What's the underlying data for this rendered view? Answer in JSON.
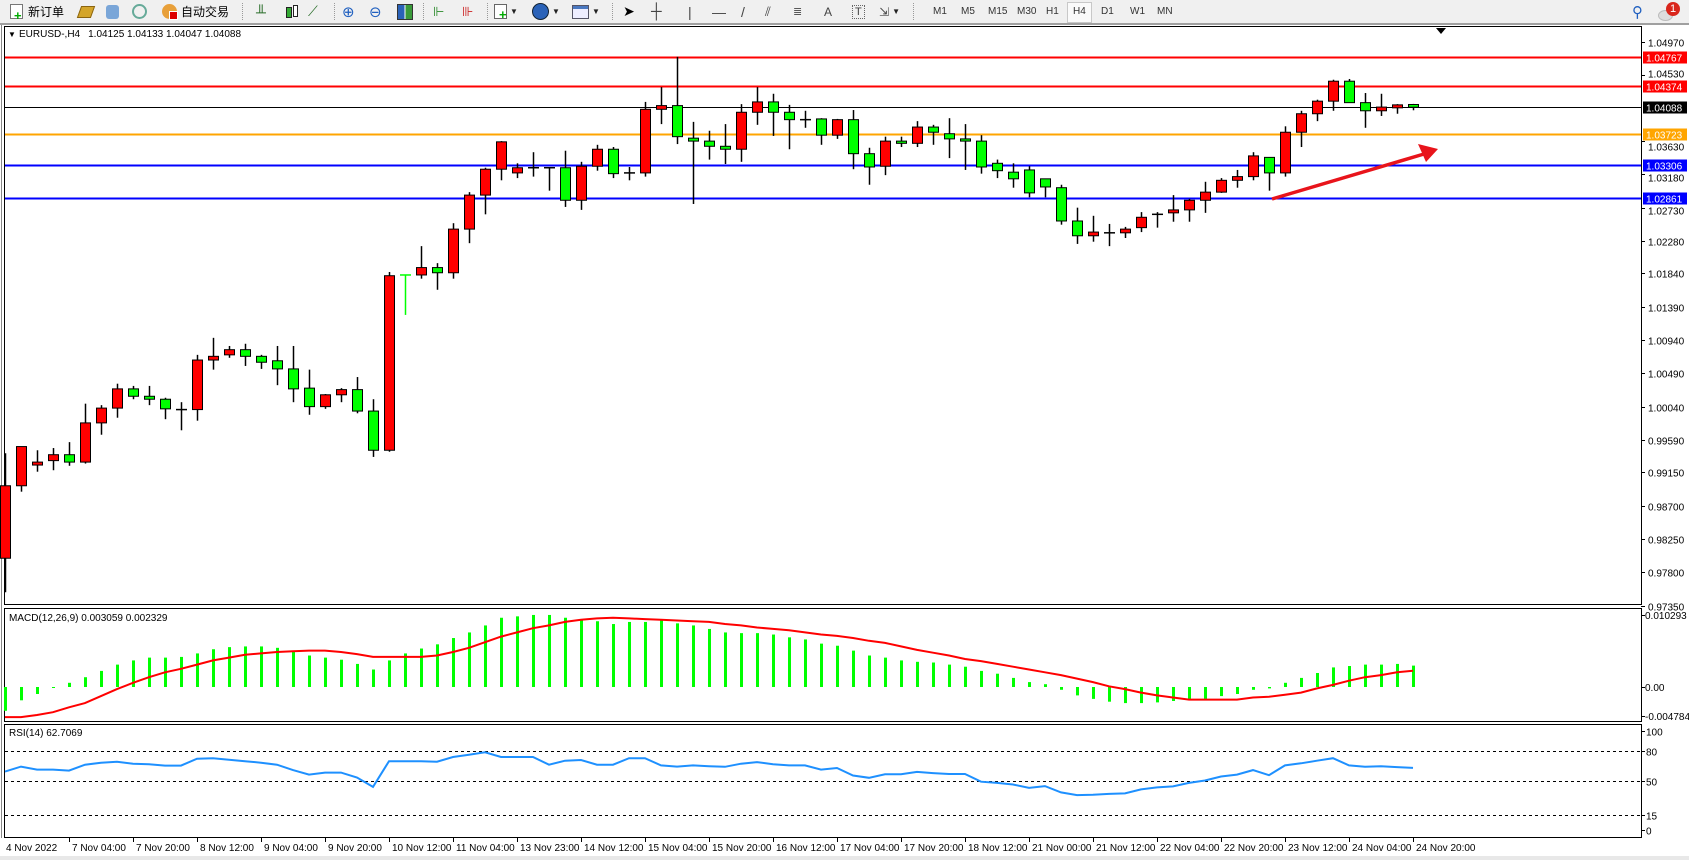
{
  "toolbar": {
    "new_order_label": "新订单",
    "auto_trading_label": "自动交易",
    "timeframes": [
      "M1",
      "M5",
      "M15",
      "M30",
      "H1",
      "H4",
      "D1",
      "W1",
      "MN"
    ],
    "active_timeframe": "H4",
    "notification_count": "1",
    "icons": [
      "new-order-icon",
      "gold-icon",
      "people-icon",
      "signal-icon",
      "auto-trading-icon",
      "bar-chart-icon",
      "candlestick-icon",
      "line-chart-icon",
      "zoom-in-icon",
      "zoom-out-icon",
      "tile-windows-icon",
      "chart-shift-icon",
      "autoscroll-icon",
      "indicators-icon",
      "periods-icon",
      "templates-icon",
      "cursor-icon",
      "crosshair-icon",
      "vertical-line-icon",
      "horizontal-line-icon",
      "trendline-icon",
      "equidistant-channel-icon",
      "fibonacci-icon",
      "text-icon",
      "text-label-icon",
      "arrows-icon",
      "search-icon",
      "notification-icon"
    ]
  },
  "chart": {
    "symbol_header": "EURUSD-,H4",
    "ohlc_header": "1.04125 1.04133 1.04047 1.04088",
    "bull_color": "#ff0000",
    "bear_color": "#00ff00"
  },
  "chart_data": {
    "type": "candlestick",
    "price_axis": {
      "ticks": [
        "1.04970",
        "1.04530",
        "1.03630",
        "1.03180",
        "1.02730",
        "1.02280",
        "1.01840",
        "1.01390",
        "1.00940",
        "1.00490",
        "1.00040",
        "0.99590",
        "0.99150",
        "0.98700",
        "0.98250",
        "0.97800",
        "0.97350"
      ]
    },
    "levels": [
      {
        "price": "1.04767",
        "color": "#ff0000"
      },
      {
        "price": "1.04374",
        "color": "#ff0000"
      },
      {
        "price": "1.04088",
        "color": "#000000"
      },
      {
        "price": "1.03723",
        "color": "#ffa500"
      },
      {
        "price": "1.03306",
        "color": "#0000ff"
      },
      {
        "price": "1.02861",
        "color": "#0000ff"
      }
    ],
    "time_labels": [
      "4 Nov 2022",
      "7 Nov 04:00",
      "7 Nov 20:00",
      "8 Nov 12:00",
      "9 Nov 04:00",
      "9 Nov 20:00",
      "10 Nov 12:00",
      "11 Nov 04:00",
      "13 Nov 23:00",
      "14 Nov 12:00",
      "15 Nov 04:00",
      "15 Nov 20:00",
      "16 Nov 12:00",
      "17 Nov 04:00",
      "17 Nov 20:00",
      "18 Nov 12:00",
      "21 Nov 00:00",
      "21 Nov 12:00",
      "22 Nov 04:00",
      "22 Nov 20:00",
      "23 Nov 12:00",
      "24 Nov 04:00",
      "24 Nov 20:00"
    ],
    "time_label_every_bars": 4,
    "ohlc": [
      [
        0.9799,
        0.9941,
        0.9753,
        0.9897
      ],
      [
        0.9897,
        0.995,
        0.9889,
        0.995
      ],
      [
        0.9925,
        0.9945,
        0.9916,
        0.9929
      ],
      [
        0.9931,
        0.9948,
        0.9918,
        0.9939
      ],
      [
        0.9939,
        0.9956,
        0.9924,
        0.9929
      ],
      [
        0.9929,
        1.0008,
        0.9927,
        0.9982
      ],
      [
        0.9982,
        1.0006,
        0.9966,
        1.0002
      ],
      [
        1.0002,
        1.0035,
        0.9989,
        1.0028
      ],
      [
        1.0028,
        1.0032,
        1.0014,
        1.0018
      ],
      [
        1.0018,
        1.0032,
        1.0006,
        1.0014
      ],
      [
        1.0014,
        1.0016,
        0.9987,
        1.0001
      ],
      [
        1.0,
        1.001,
        0.9972,
        1.0
      ],
      [
        1.0,
        1.0074,
        0.9985,
        1.0067
      ],
      [
        1.0067,
        1.0097,
        1.0054,
        1.0072
      ],
      [
        1.0074,
        1.0086,
        1.007,
        1.0081
      ],
      [
        1.0081,
        1.0089,
        1.0059,
        1.0072
      ],
      [
        1.0072,
        1.0074,
        1.0055,
        1.0064
      ],
      [
        1.0066,
        1.0086,
        1.0033,
        1.0055
      ],
      [
        1.0055,
        1.0086,
        1.001,
        1.0028
      ],
      [
        1.0029,
        1.0054,
        0.9993,
        1.0004
      ],
      [
        1.0004,
        1.0021,
        1.0001,
        1.002
      ],
      [
        1.002,
        1.0029,
        1.001,
        1.0027
      ],
      [
        1.0027,
        1.0044,
        0.9995,
        0.9998
      ],
      [
        0.9998,
        1.0014,
        0.9936,
        0.9945
      ],
      [
        0.9945,
        1.0186,
        0.9943,
        1.0181
      ],
      [
        1.0182,
        1.0182,
        1.0128,
        1.0181
      ],
      [
        1.0182,
        1.0221,
        1.0177,
        1.0192
      ],
      [
        1.0192,
        1.0198,
        1.0162,
        1.0185
      ],
      [
        1.0185,
        1.0252,
        1.0177,
        1.0244
      ],
      [
        1.0244,
        1.0294,
        1.0225,
        1.029
      ],
      [
        1.029,
        1.0327,
        1.0264,
        1.0325
      ],
      [
        1.0325,
        1.0363,
        1.031,
        1.0362
      ],
      [
        1.032,
        1.0333,
        1.0313,
        1.0327
      ],
      [
        1.0325,
        1.0348,
        1.0315,
        1.0327
      ],
      [
        1.0327,
        1.0328,
        1.0296,
        1.0327
      ],
      [
        1.0327,
        1.035,
        1.0274,
        1.0283
      ],
      [
        1.0283,
        1.0335,
        1.027,
        1.0329
      ],
      [
        1.0329,
        1.0358,
        1.0323,
        1.0352
      ],
      [
        1.0352,
        1.0355,
        1.0313,
        1.0319
      ],
      [
        1.032,
        1.0328,
        1.031,
        1.032
      ],
      [
        1.032,
        1.0416,
        1.0315,
        1.0406
      ],
      [
        1.0406,
        1.0436,
        1.0386,
        1.0411
      ],
      [
        1.0411,
        1.0477,
        1.0359,
        1.0369
      ],
      [
        1.0367,
        1.0389,
        1.0278,
        1.0363
      ],
      [
        1.0363,
        1.0377,
        1.0338,
        1.0356
      ],
      [
        1.0356,
        1.0386,
        1.0332,
        1.0352
      ],
      [
        1.0352,
        1.0413,
        1.0335,
        1.0402
      ],
      [
        1.0402,
        1.0436,
        1.0385,
        1.0416
      ],
      [
        1.0416,
        1.0427,
        1.037,
        1.0402
      ],
      [
        1.0402,
        1.0412,
        1.0352,
        1.0392
      ],
      [
        1.0392,
        1.0404,
        1.0381,
        1.0392
      ],
      [
        1.0393,
        1.0394,
        1.0358,
        1.0371
      ],
      [
        1.0371,
        1.0393,
        1.0366,
        1.0392
      ],
      [
        1.0392,
        1.0405,
        1.0325,
        1.0346
      ],
      [
        1.0346,
        1.0354,
        1.0304,
        1.0328
      ],
      [
        1.0329,
        1.0369,
        1.0317,
        1.0363
      ],
      [
        1.0363,
        1.0369,
        1.0355,
        1.036
      ],
      [
        1.036,
        1.039,
        1.0355,
        1.0382
      ],
      [
        1.0382,
        1.0385,
        1.0358,
        1.0375
      ],
      [
        1.0373,
        1.0394,
        1.034,
        1.0366
      ],
      [
        1.0366,
        1.0386,
        1.0324,
        1.0363
      ],
      [
        1.0363,
        1.0371,
        1.0319,
        1.0328
      ],
      [
        1.0333,
        1.0338,
        1.0313,
        1.0323
      ],
      [
        1.0321,
        1.0333,
        1.03,
        1.0312
      ],
      [
        1.0324,
        1.0329,
        1.0287,
        1.0293
      ],
      [
        1.0312,
        1.0312,
        1.0287,
        1.0301
      ],
      [
        1.03,
        1.0304,
        1.025,
        1.0255
      ],
      [
        1.0255,
        1.0273,
        1.0224,
        1.0235
      ],
      [
        1.0235,
        1.0262,
        1.0227,
        1.024
      ],
      [
        1.0239,
        1.0251,
        1.0221,
        1.0239
      ],
      [
        1.0239,
        1.0247,
        1.0232,
        1.0244
      ],
      [
        1.0246,
        1.0267,
        1.024,
        1.026
      ],
      [
        1.0262,
        1.0267,
        1.0246,
        1.0264
      ],
      [
        1.0266,
        1.029,
        1.0254,
        1.027
      ],
      [
        1.027,
        1.0285,
        1.0254,
        1.0283
      ],
      [
        1.0283,
        1.0308,
        1.0266,
        1.0294
      ],
      [
        1.0294,
        1.0313,
        1.0293,
        1.031
      ],
      [
        1.031,
        1.0324,
        1.03,
        1.0315
      ],
      [
        1.0315,
        1.0348,
        1.031,
        1.0343
      ],
      [
        1.0341,
        1.0341,
        1.0296,
        1.032
      ],
      [
        1.032,
        1.0383,
        1.0315,
        1.0375
      ],
      [
        1.0375,
        1.0404,
        1.0355,
        1.04
      ],
      [
        1.04,
        1.0419,
        1.039,
        1.0417
      ],
      [
        1.0417,
        1.0446,
        1.0404,
        1.0444
      ],
      [
        1.0444,
        1.0447,
        1.0415,
        1.0415
      ],
      [
        1.0415,
        1.0428,
        1.0381,
        1.0404
      ],
      [
        1.0404,
        1.0427,
        1.0397,
        1.0409
      ],
      [
        1.0408,
        1.0413,
        1.04,
        1.0412
      ],
      [
        1.04125,
        1.04133,
        1.04047,
        1.04088
      ]
    ],
    "annotation_arrow": {
      "color": "#e8141b",
      "direction": "up-right"
    },
    "macd": {
      "label": "MACD(12,26,9) 0.003059 0.002329",
      "axis_labels": [
        "0.010293",
        "0.00",
        "-0.004784"
      ],
      "range": [
        -0.004784,
        0.010293
      ],
      "histogram_color": "#00ff00",
      "signal_color": "#ff0000",
      "main": [
        -0.0034,
        -0.0019,
        -0.001,
        -0.0001,
        0.0006,
        0.0014,
        0.0023,
        0.0032,
        0.0038,
        0.0042,
        0.0042,
        0.0043,
        0.0048,
        0.0054,
        0.0057,
        0.0058,
        0.0058,
        0.0056,
        0.005,
        0.0045,
        0.0042,
        0.0039,
        0.0033,
        0.0025,
        0.0038,
        0.0048,
        0.0055,
        0.0061,
        0.007,
        0.0078,
        0.0088,
        0.0099,
        0.0101,
        0.0103,
        0.0103,
        0.0099,
        0.0097,
        0.0094,
        0.009,
        0.0093,
        0.0093,
        0.0096,
        0.0091,
        0.0088,
        0.0083,
        0.0078,
        0.0077,
        0.0077,
        0.0075,
        0.0071,
        0.0068,
        0.0062,
        0.0059,
        0.0052,
        0.0045,
        0.0042,
        0.0038,
        0.0036,
        0.0035,
        0.0032,
        0.0029,
        0.0023,
        0.0019,
        0.0013,
        0.0007,
        0.0004,
        -0.0004,
        -0.0012,
        -0.0017,
        -0.0021,
        -0.0023,
        -0.0023,
        -0.0022,
        -0.002,
        -0.0017,
        -0.0017,
        -0.0013,
        -0.001,
        -0.0004,
        -0.0002,
        0.0006,
        0.0013,
        0.002,
        0.0028,
        0.003,
        0.0032,
        0.0032,
        0.0033,
        0.003059
      ],
      "signal": [
        -0.0043,
        -0.0043,
        -0.004,
        -0.0036,
        -0.0029,
        -0.0023,
        -0.0013,
        -0.0003,
        0.0006,
        0.0014,
        0.0021,
        0.0026,
        0.0032,
        0.0038,
        0.0042,
        0.0046,
        0.0048,
        0.005,
        0.0051,
        0.0052,
        0.0052,
        0.005,
        0.0047,
        0.0043,
        0.0043,
        0.0043,
        0.0043,
        0.0045,
        0.005,
        0.0056,
        0.0064,
        0.0072,
        0.0078,
        0.0084,
        0.0088,
        0.0093,
        0.0096,
        0.0098,
        0.0099,
        0.0098,
        0.0097,
        0.0096,
        0.0095,
        0.0094,
        0.0093,
        0.009,
        0.0088,
        0.0085,
        0.0083,
        0.0081,
        0.0078,
        0.0075,
        0.0073,
        0.007,
        0.0066,
        0.0063,
        0.0058,
        0.0053,
        0.0049,
        0.0045,
        0.004,
        0.0037,
        0.0033,
        0.0029,
        0.0025,
        0.0021,
        0.0017,
        0.0012,
        0.0007,
        0.0001,
        -0.0003,
        -0.0008,
        -0.0012,
        -0.0015,
        -0.0018,
        -0.0018,
        -0.0018,
        -0.0018,
        -0.0015,
        -0.0014,
        -0.0011,
        -0.0008,
        -0.0002,
        0.0003,
        0.0009,
        0.0014,
        0.0017,
        0.0021,
        0.002329
      ]
    },
    "rsi": {
      "label": "RSI(14) 62.7069",
      "axis_labels": [
        "100",
        "80",
        "50",
        "15",
        "0"
      ],
      "levels": [
        80,
        50,
        15
      ],
      "color": "#1e90ff",
      "values": [
        59,
        64,
        61,
        61,
        60,
        66,
        68,
        69,
        67,
        66.5,
        65,
        65,
        72,
        72.5,
        71,
        69.5,
        68,
        66,
        60.5,
        56,
        58,
        58,
        53,
        43.5,
        69.5,
        69.5,
        69.5,
        69,
        73.7,
        76,
        78.5,
        73.7,
        73.7,
        73.7,
        66,
        70,
        70.7,
        66,
        66,
        72.5,
        72.5,
        65.3,
        64,
        65.3,
        64.4,
        63.8,
        67,
        68.6,
        66.5,
        65.3,
        65.3,
        61,
        62.6,
        55,
        52.7,
        56.3,
        56.3,
        58.7,
        57.5,
        56.6,
        56.6,
        48.8,
        47.6,
        46,
        42.5,
        44.3,
        38,
        35.3,
        35.6,
        36.5,
        37,
        41,
        43,
        44,
        47.6,
        50,
        54,
        56,
        60.5,
        55.4,
        65.3,
        67.4,
        70,
        72.5,
        65.3,
        63.8,
        64.4,
        63.5,
        62.7069
      ]
    }
  }
}
